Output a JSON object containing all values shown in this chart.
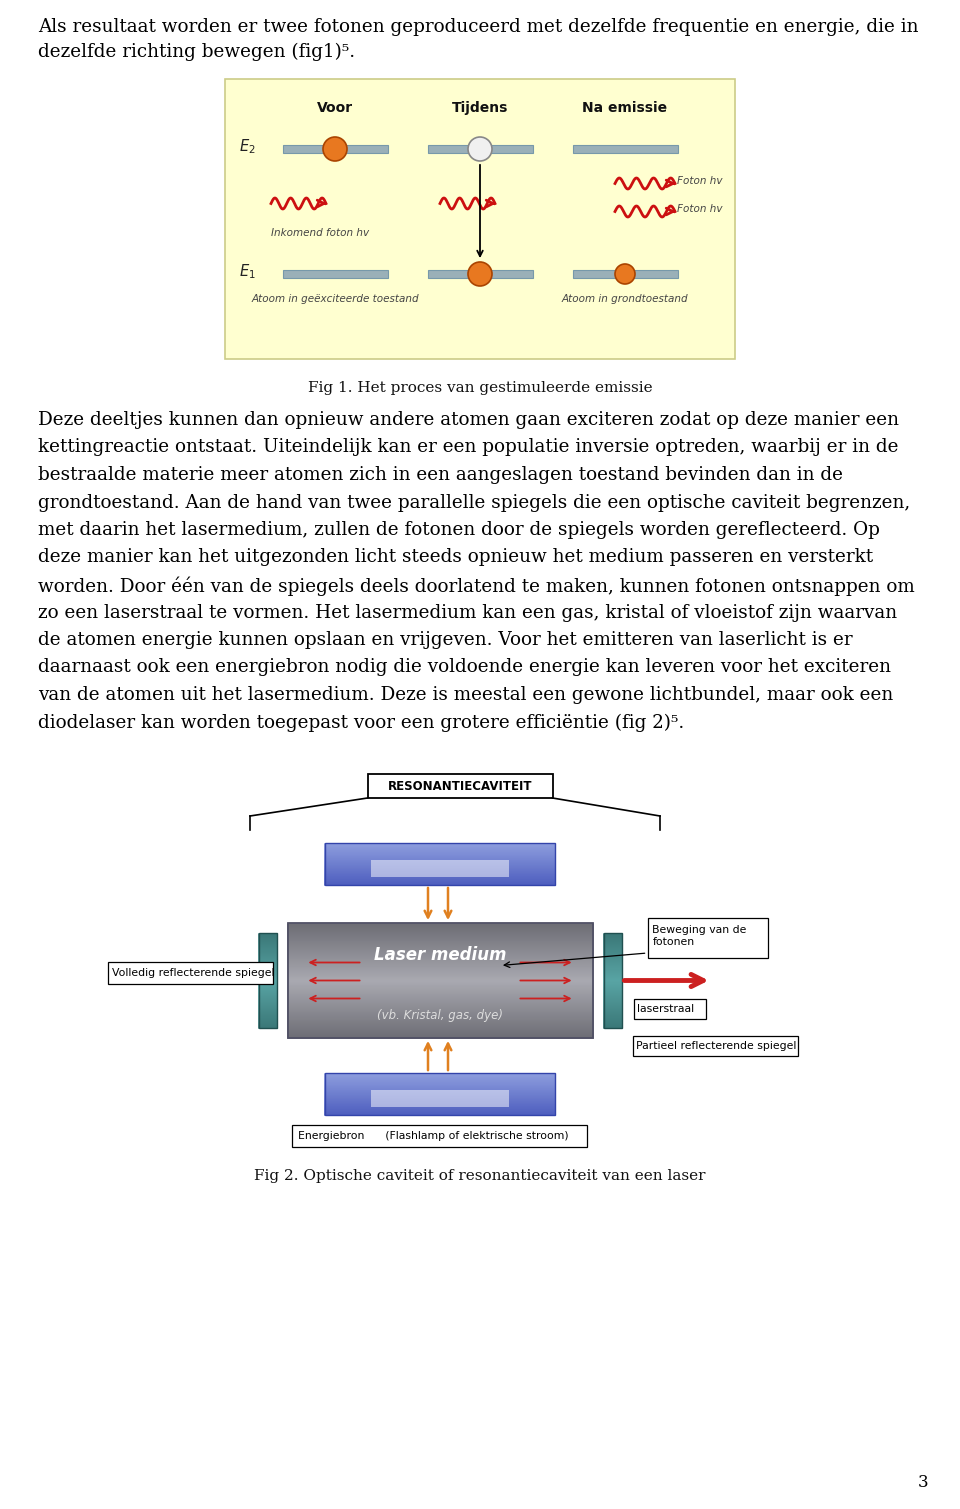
{
  "page_bg": "#ffffff",
  "text_color": "#000000",
  "fig1_bg": "#ffffd0",
  "fig1_border": "#cccc88",
  "line1": "Als resultaat worden er twee fotonen geproduceerd met dezelfde frequentie en energie, die in",
  "line2": "dezelfde richting bewegen (fig1)⁵.",
  "fig1_caption": "Fig 1. Het proces van gestimuleerde emissie",
  "para3_lines": [
    "Deze deeltjes kunnen dan opnieuw andere atomen gaan exciteren zodat op deze manier een",
    "kettingreactie ontstaat. Uiteindelijk kan er een populatie inversie optreden, waarbij er in de",
    "bestraalde materie meer atomen zich in een aangeslagen toestand bevinden dan in de",
    "grondtoestand. Aan de hand van twee parallelle spiegels die een optische caviteit begrenzen,",
    "met daarin het lasermedium, zullen de fotonen door de spiegels worden gereflecteerd. Op",
    "deze manier kan het uitgezonden licht steeds opnieuw het medium passeren en versterkt",
    "worden. Door één van de spiegels deels doorlatend te maken, kunnen fotonen ontsnappen om",
    "zo een laserstraal te vormen. Het lasermedium kan een gas, kristal of vloeistof zijn waarvan",
    "de atomen energie kunnen opslaan en vrijgeven. Voor het emitteren van laserlicht is er",
    "daarnaast ook een energiebron nodig die voldoende energie kan leveren voor het exciteren",
    "van de atomen uit het lasermedium. Deze is meestal een gewone lichtbundel, maar ook een",
    "diodelaser kan worden toegepast voor een grotere efficiëntie (fig 2)⁵."
  ],
  "fig2_caption": "Fig 2. Optische caviteit of resonantiecaviteit van een laser",
  "page_num": "3",
  "atom_orange": "#e87820",
  "atom_white": "#f0f0f0",
  "bar_color": "#9ab0b8",
  "wave_color": "#cc1010",
  "arrow_color": "#000000",
  "label_color": "#555555",
  "medium_dark": "#707080",
  "medium_light": "#a0a0b0",
  "mirror_teal": "#3a8080",
  "mirror_teal_light": "#50b0b0",
  "blue_panel": "#4455bb",
  "blue_panel_light": "#99aae0",
  "orange_arrow": "#e08020",
  "red_arrow": "#cc2020"
}
